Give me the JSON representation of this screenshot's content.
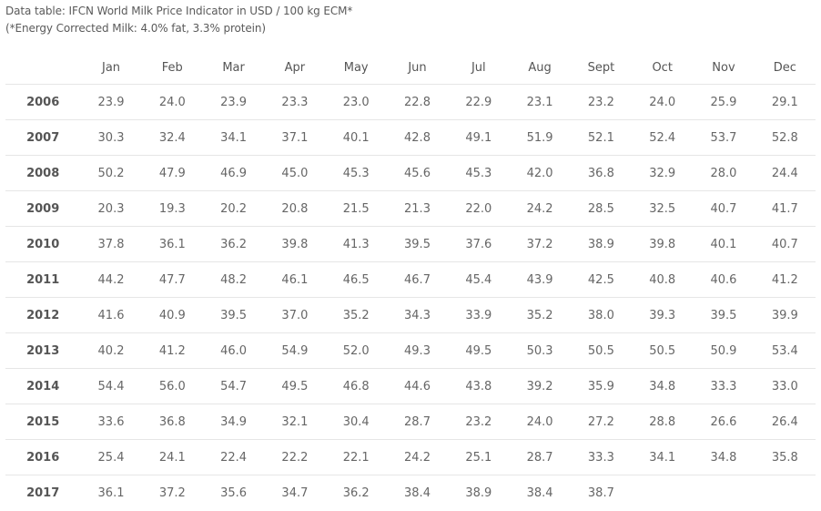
{
  "chart_data": {
    "type": "table",
    "title": "Data table: IFCN World Milk Price Indicator in USD / 100 kg ECM*",
    "subtitle": "(*Energy Corrected Milk: 4.0% fat, 3.3% protein)",
    "columns": [
      "",
      "Jan",
      "Feb",
      "Mar",
      "Apr",
      "May",
      "Jun",
      "Jul",
      "Aug",
      "Sept",
      "Oct",
      "Nov",
      "Dec"
    ],
    "rows": [
      {
        "year": "2006",
        "values": [
          "23.9",
          "24.0",
          "23.9",
          "23.3",
          "23.0",
          "22.8",
          "22.9",
          "23.1",
          "23.2",
          "24.0",
          "25.9",
          "29.1"
        ]
      },
      {
        "year": "2007",
        "values": [
          "30.3",
          "32.4",
          "34.1",
          "37.1",
          "40.1",
          "42.8",
          "49.1",
          "51.9",
          "52.1",
          "52.4",
          "53.7",
          "52.8"
        ]
      },
      {
        "year": "2008",
        "values": [
          "50.2",
          "47.9",
          "46.9",
          "45.0",
          "45.3",
          "45.6",
          "45.3",
          "42.0",
          "36.8",
          "32.9",
          "28.0",
          "24.4"
        ]
      },
      {
        "year": "2009",
        "values": [
          "20.3",
          "19.3",
          "20.2",
          "20.8",
          "21.5",
          "21.3",
          "22.0",
          "24.2",
          "28.5",
          "32.5",
          "40.7",
          "41.7"
        ]
      },
      {
        "year": "2010",
        "values": [
          "37.8",
          "36.1",
          "36.2",
          "39.8",
          "41.3",
          "39.5",
          "37.6",
          "37.2",
          "38.9",
          "39.8",
          "40.1",
          "40.7"
        ]
      },
      {
        "year": "2011",
        "values": [
          "44.2",
          "47.7",
          "48.2",
          "46.1",
          "46.5",
          "46.7",
          "45.4",
          "43.9",
          "42.5",
          "40.8",
          "40.6",
          "41.2"
        ]
      },
      {
        "year": "2012",
        "values": [
          "41.6",
          "40.9",
          "39.5",
          "37.0",
          "35.2",
          "34.3",
          "33.9",
          "35.2",
          "38.0",
          "39.3",
          "39.5",
          "39.9"
        ]
      },
      {
        "year": "2013",
        "values": [
          "40.2",
          "41.2",
          "46.0",
          "54.9",
          "52.0",
          "49.3",
          "49.5",
          "50.3",
          "50.5",
          "50.5",
          "50.9",
          "53.4"
        ]
      },
      {
        "year": "2014",
        "values": [
          "54.4",
          "56.0",
          "54.7",
          "49.5",
          "46.8",
          "44.6",
          "43.8",
          "39.2",
          "35.9",
          "34.8",
          "33.3",
          "33.0"
        ]
      },
      {
        "year": "2015",
        "values": [
          "33.6",
          "36.8",
          "34.9",
          "32.1",
          "30.4",
          "28.7",
          "23.2",
          "24.0",
          "27.2",
          "28.8",
          "26.6",
          "26.4"
        ]
      },
      {
        "year": "2016",
        "values": [
          "25.4",
          "24.1",
          "22.4",
          "22.2",
          "22.1",
          "24.2",
          "25.1",
          "28.7",
          "33.3",
          "34.1",
          "34.8",
          "35.8"
        ]
      },
      {
        "year": "2017",
        "values": [
          "36.1",
          "37.2",
          "35.6",
          "34.7",
          "36.2",
          "38.4",
          "38.9",
          "38.4",
          "38.7",
          "",
          "",
          ""
        ]
      }
    ]
  }
}
